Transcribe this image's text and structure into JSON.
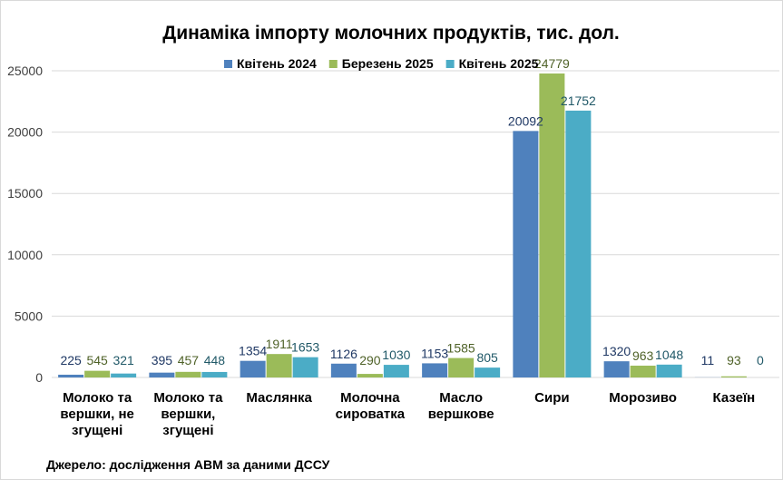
{
  "chart_data": {
    "type": "bar",
    "title": "Динаміка імпорту молочних продуктів, тис. дол.",
    "categories": [
      [
        "Молоко та",
        "вершки, не",
        "згущені"
      ],
      [
        "Молоко та",
        "вершки,",
        "згущені"
      ],
      [
        "Маслянка"
      ],
      [
        "Молочна",
        "сироватка"
      ],
      [
        "Масло",
        "вершкове"
      ],
      [
        "Сири"
      ],
      [
        "Морозиво"
      ],
      [
        "Казеїн"
      ]
    ],
    "series": [
      {
        "name": "Квітень 2024",
        "color": "#4f81bd",
        "label_color": "#1f3864",
        "values": [
          225,
          395,
          1354,
          1126,
          1153,
          20092,
          1320,
          11
        ]
      },
      {
        "name": "Березень 2025",
        "color": "#9bbb59",
        "label_color": "#4f6228",
        "values": [
          545,
          457,
          1911,
          290,
          1585,
          24779,
          963,
          93
        ]
      },
      {
        "name": "Квітень 2025",
        "color": "#4bacc6",
        "label_color": "#215968",
        "values": [
          321,
          448,
          1653,
          1030,
          805,
          21752,
          1048,
          0
        ]
      }
    ],
    "yticks": [
      0,
      5000,
      10000,
      15000,
      20000,
      25000
    ],
    "ylim": [
      0,
      25000
    ],
    "grid": true,
    "legend_position": "top",
    "source": "Джерело: дослідження АВМ за даними ДССУ"
  }
}
